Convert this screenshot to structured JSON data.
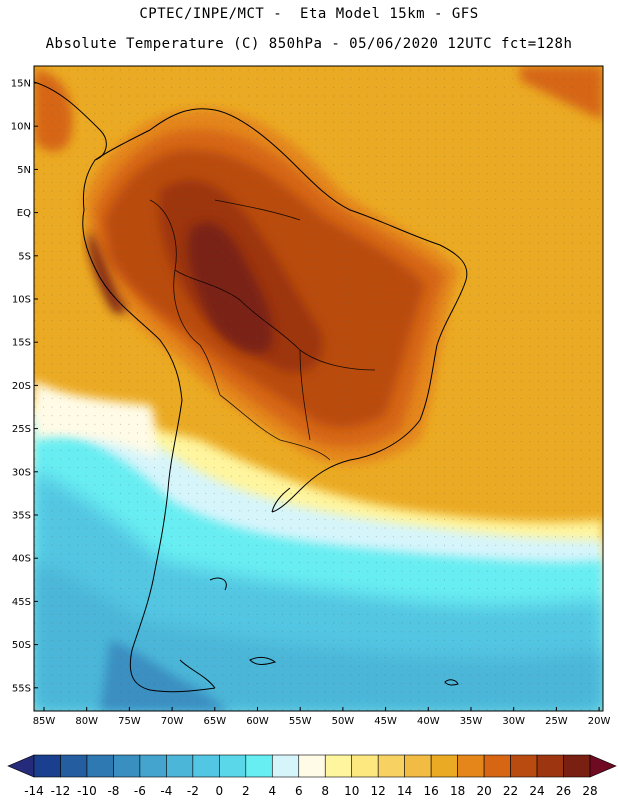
{
  "header": {
    "line1": "CPTEC/INPE/MCT -  Eta Model 15km - GFS",
    "line2": "Absolute Temperature (C) 850hPa - 05/06/2020 12UTC fct=128h"
  },
  "axes": {
    "lat_labels": [
      "15N",
      "10N",
      "5N",
      "EQ",
      "5S",
      "10S",
      "15S",
      "20S",
      "25S",
      "30S",
      "35S",
      "40S",
      "45S",
      "50S",
      "55S"
    ],
    "lon_labels": [
      "85W",
      "80W",
      "75W",
      "70W",
      "65W",
      "60W",
      "55W",
      "50W",
      "45W",
      "40W",
      "35W",
      "30W",
      "25W",
      "20W"
    ]
  },
  "colorbar": {
    "ticks": [
      "-14",
      "-12",
      "-10",
      "-8",
      "-6",
      "-4",
      "-2",
      "0",
      "2",
      "4",
      "6",
      "8",
      "10",
      "12",
      "14",
      "16",
      "18",
      "20",
      "22",
      "24",
      "26",
      "28"
    ],
    "colors": [
      "#1b3f8f",
      "#255ea0",
      "#2f79b2",
      "#3a8fc1",
      "#44a4cd",
      "#4cb6d8",
      "#52c6e2",
      "#5ad8ea",
      "#67eef2",
      "#d6f5fb",
      "#fffbe6",
      "#fff59e",
      "#fde77f",
      "#f7d162",
      "#f1bb44",
      "#ebaa23",
      "#e4861a",
      "#d66614",
      "#b94b10",
      "#9d3510",
      "#7a2012"
    ],
    "under_color": "#262a7a",
    "over_color": "#6e0b22"
  }
}
